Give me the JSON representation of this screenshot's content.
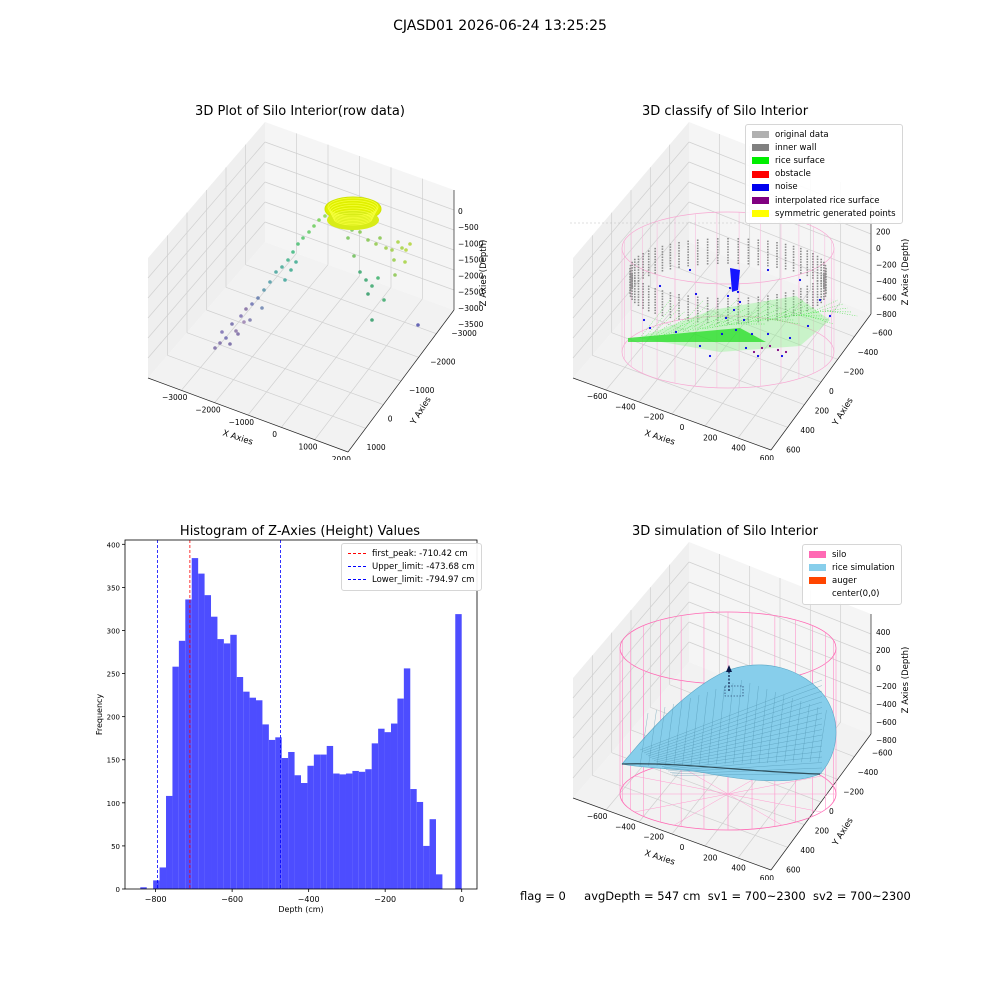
{
  "suptitle": "CJASD01 2026-06-24 13:25:25",
  "panels": {
    "raw": {
      "title": "3D Plot of Silo Interior(row data)",
      "xlabel": "X Axies",
      "ylabel": "Y Axies",
      "zlabel": "Z Axies (Depth)",
      "xticks": [
        "−3000",
        "−2000",
        "−1000",
        "0",
        "1000",
        "2000"
      ],
      "yticks": [
        "1000",
        "0",
        "−1000",
        "−2000",
        "−3000"
      ],
      "zticks": [
        "0",
        "−500",
        "−1000",
        "−1500",
        "−2000",
        "−2500",
        "−3000",
        "−3500"
      ]
    },
    "classify": {
      "title": "3D classify of Silo Interior",
      "xlabel": "X Axies",
      "ylabel": "Y Axies",
      "zlabel": "Z Axies (Depth)",
      "xticks": [
        "−600",
        "−400",
        "−200",
        "0",
        "200",
        "400",
        "600"
      ],
      "yticks": [
        "600",
        "400",
        "200",
        "0",
        "−200",
        "−400",
        "−600"
      ],
      "zticks": [
        "400",
        "200",
        "0",
        "−200",
        "−400",
        "−600",
        "−800"
      ],
      "legend": [
        {
          "label": "original data",
          "color": "#b0b0b0"
        },
        {
          "label": "inner wall",
          "color": "#808080"
        },
        {
          "label": "rice surface",
          "color": "#00ee00"
        },
        {
          "label": "obstacle",
          "color": "#ff0000"
        },
        {
          "label": "noise",
          "color": "#0000ee"
        },
        {
          "label": "interpolated rice surface",
          "color": "#800080"
        },
        {
          "label": "symmetric generated points",
          "color": "#ffff00"
        }
      ]
    },
    "simulation": {
      "title": "3D simulation of Silo Interior",
      "xlabel": "X Axies",
      "ylabel": "Y Axies",
      "zlabel": "Z Axies (Depth)",
      "xticks": [
        "−600",
        "−400",
        "−200",
        "0",
        "200",
        "400",
        "600"
      ],
      "yticks": [
        "600",
        "400",
        "200",
        "0",
        "−200",
        "−400",
        "−600"
      ],
      "zticks": [
        "400",
        "200",
        "0",
        "−200",
        "−400",
        "−600",
        "−800"
      ],
      "legend": [
        {
          "label": "silo",
          "color": "#ff69b4"
        },
        {
          "label": "rice simulation",
          "color": "#87ceeb"
        },
        {
          "label": "auger",
          "color": "#ff4500"
        },
        {
          "label": "center(0,0)",
          "color": ""
        }
      ]
    }
  },
  "chart_data": {
    "type": "bar",
    "title": "Histogram of Z-Axies (Height) Values",
    "xlabel": "Depth (cm)",
    "ylabel": "Frequency",
    "xlim": [
      -880,
      40
    ],
    "ylim": [
      0,
      405
    ],
    "xticks": [
      -800,
      -600,
      -400,
      -200,
      0
    ],
    "yticks": [
      0,
      50,
      100,
      150,
      200,
      250,
      300,
      350,
      400
    ],
    "bin_width": 16.8,
    "bins": [
      {
        "left": -840.0,
        "count": 2
      },
      {
        "left": -823.2,
        "count": 0
      },
      {
        "left": -806.4,
        "count": 10
      },
      {
        "left": -789.6,
        "count": 25
      },
      {
        "left": -772.8,
        "count": 108
      },
      {
        "left": -756.0,
        "count": 258
      },
      {
        "left": -739.2,
        "count": 288
      },
      {
        "left": -722.4,
        "count": 336
      },
      {
        "left": -705.6,
        "count": 384
      },
      {
        "left": -688.8,
        "count": 366
      },
      {
        "left": -672.0,
        "count": 341
      },
      {
        "left": -655.2,
        "count": 316
      },
      {
        "left": -638.4,
        "count": 290
      },
      {
        "left": -621.6,
        "count": 285
      },
      {
        "left": -604.8,
        "count": 295
      },
      {
        "left": -588.0,
        "count": 246
      },
      {
        "left": -571.2,
        "count": 229
      },
      {
        "left": -554.4,
        "count": 222
      },
      {
        "left": -537.6,
        "count": 219
      },
      {
        "left": -520.8,
        "count": 191
      },
      {
        "left": -504.0,
        "count": 173
      },
      {
        "left": -487.2,
        "count": 176
      },
      {
        "left": -470.4,
        "count": 152
      },
      {
        "left": -453.6,
        "count": 159
      },
      {
        "left": -436.8,
        "count": 132
      },
      {
        "left": -420.0,
        "count": 123
      },
      {
        "left": -403.2,
        "count": 143
      },
      {
        "left": -386.4,
        "count": 156
      },
      {
        "left": -369.6,
        "count": 156
      },
      {
        "left": -352.8,
        "count": 166
      },
      {
        "left": -336.0,
        "count": 134
      },
      {
        "left": -319.2,
        "count": 133
      },
      {
        "left": -302.4,
        "count": 134
      },
      {
        "left": -285.6,
        "count": 137
      },
      {
        "left": -268.8,
        "count": 136
      },
      {
        "left": -252.0,
        "count": 139
      },
      {
        "left": -235.2,
        "count": 169
      },
      {
        "left": -218.4,
        "count": 186
      },
      {
        "left": -201.6,
        "count": 182
      },
      {
        "left": -184.8,
        "count": 192
      },
      {
        "left": -168.0,
        "count": 221
      },
      {
        "left": -151.2,
        "count": 256
      },
      {
        "left": -134.4,
        "count": 116
      },
      {
        "left": -117.6,
        "count": 101
      },
      {
        "left": -100.8,
        "count": 50
      },
      {
        "left": -84.0,
        "count": 81
      },
      {
        "left": -67.2,
        "count": 17
      },
      {
        "left": -50.4,
        "count": 0
      },
      {
        "left": -33.6,
        "count": 0
      },
      {
        "left": -16.8,
        "count": 319
      }
    ],
    "vlines": [
      {
        "label": "first_peak: -710.42 cm",
        "value": -710.42,
        "color": "#ff0000"
      },
      {
        "label": "Upper_limit: -473.68 cm",
        "value": -473.68,
        "color": "#0000ff"
      },
      {
        "label": "Lower_limit: -794.97 cm",
        "value": -794.97,
        "color": "#0000ff"
      }
    ],
    "bar_color": "#4d4dff",
    "legend_position": "top-right"
  },
  "footer": {
    "flag": "flag = 0",
    "avg": "avgDepth = 547 cm",
    "sv1": "sv1 = 700~2300",
    "sv2": "sv2 = 700~2300"
  }
}
